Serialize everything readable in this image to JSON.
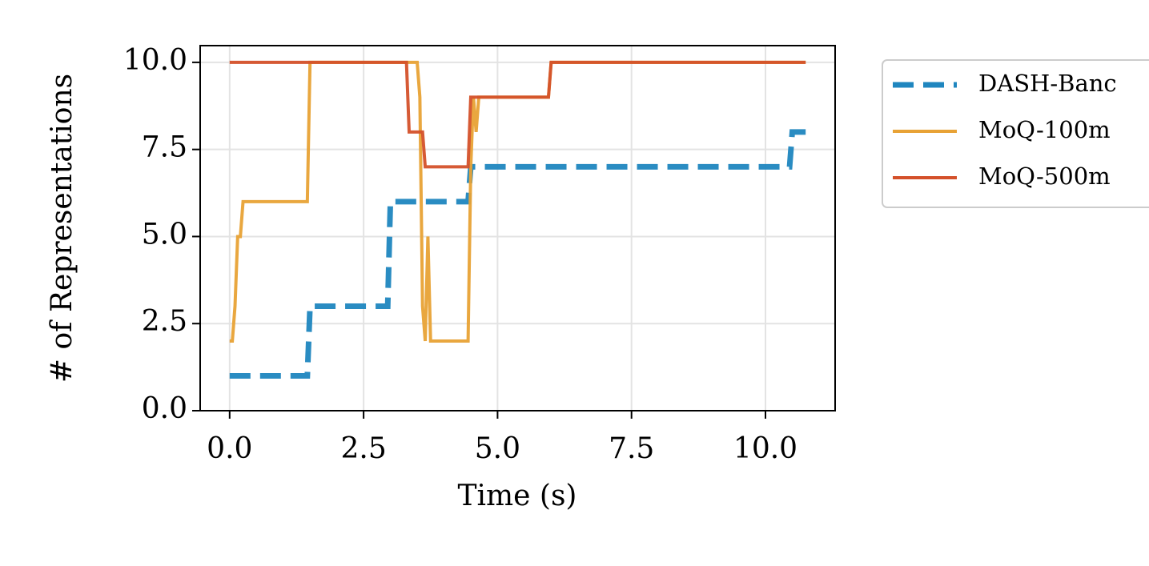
{
  "chart_data": {
    "type": "line",
    "x_label": "Time (s)",
    "y_label": "# of Representations",
    "xlim": [
      -0.55,
      11.3
    ],
    "ylim": [
      0,
      10.48
    ],
    "xticks": [
      {
        "value": 0,
        "label": "0.0"
      },
      2.5,
      {
        "value": 5,
        "label": "5.0"
      },
      7.5,
      {
        "value": 10,
        "label": "10.0"
      }
    ],
    "yticks": [
      {
        "value": 0,
        "label": "0.0"
      },
      2.5,
      {
        "value": 5,
        "label": "5.0"
      },
      7.5,
      {
        "value": 10,
        "label": "10.0"
      }
    ],
    "grid": true,
    "legend": "outside right",
    "series": [
      {
        "name": "DASH-Banc",
        "color": "#1f86bf",
        "dashed": true,
        "x": [
          0,
          1.45,
          1.5,
          2.95,
          3.0,
          4.45,
          4.5,
          10.45,
          10.5,
          10.75
        ],
        "values": [
          1,
          1,
          3,
          3,
          6,
          6,
          7,
          7,
          8,
          8
        ]
      },
      {
        "name": "MoQ-100m",
        "color": "#e8a235",
        "dashed": false,
        "x": [
          0,
          0.05,
          0.1,
          0.15,
          0.2,
          0.25,
          1.45,
          1.5,
          3.5,
          3.55,
          3.6,
          3.65,
          3.7,
          3.75,
          4.45,
          4.5,
          4.55,
          4.6,
          4.65,
          4.7,
          5.95,
          6.0,
          10.75
        ],
        "values": [
          2,
          2,
          3,
          5,
          5,
          6,
          6,
          10,
          10,
          9,
          3,
          2,
          5,
          2,
          2,
          7,
          9,
          8,
          9,
          9,
          9,
          10,
          10
        ]
      },
      {
        "name": "MoQ-500m",
        "color": "#d4512a",
        "dashed": false,
        "x": [
          0,
          3.3,
          3.35,
          3.6,
          3.65,
          4.45,
          4.5,
          5.95,
          6.0,
          10.75
        ],
        "values": [
          10,
          10,
          8,
          8,
          7,
          7,
          9,
          9,
          10,
          10
        ]
      }
    ]
  }
}
